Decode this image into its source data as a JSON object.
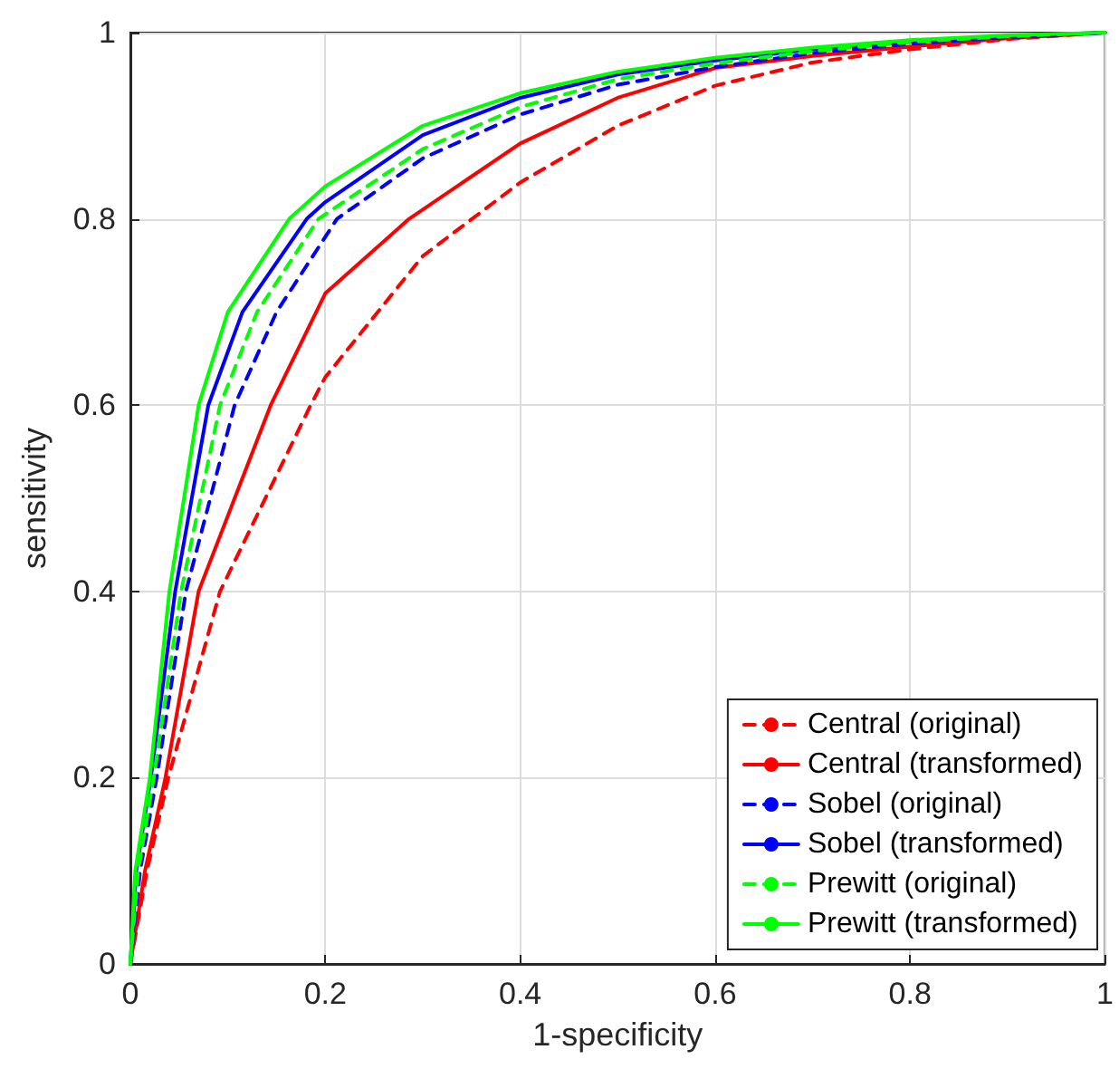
{
  "chart_data": {
    "type": "line",
    "xlabel": "1-specificity",
    "ylabel": "sensitivity",
    "xlim": [
      0,
      1
    ],
    "ylim": [
      0,
      1
    ],
    "xticks": [
      0,
      0.2,
      0.4,
      0.6,
      0.8,
      1
    ],
    "yticks": [
      0,
      0.2,
      0.4,
      0.6,
      0.8,
      1
    ],
    "grid": true,
    "legend": "bottom right",
    "marker": "none",
    "series": [
      {
        "name": "Central (original)",
        "color": "#ff0000",
        "line_style": "dashed",
        "x": [
          0,
          0.017,
          0.039,
          0.092,
          0.185,
          0.2,
          0.3,
          0.4,
          0.5,
          0.6,
          0.7,
          0.8,
          0.9,
          1
        ],
        "values": [
          0,
          0.1,
          0.2,
          0.4,
          0.6,
          0.63,
          0.76,
          0.839,
          0.9,
          0.943,
          0.968,
          0.982,
          0.993,
          1
        ]
      },
      {
        "name": "Central (transformed)",
        "color": "#ff0000",
        "line_style": "solid",
        "x": [
          0,
          0.015,
          0.036,
          0.07,
          0.144,
          0.2,
          0.286,
          0.4,
          0.5,
          0.6,
          0.7,
          0.8,
          0.9,
          1
        ],
        "values": [
          0,
          0.1,
          0.2,
          0.4,
          0.6,
          0.72,
          0.8,
          0.881,
          0.93,
          0.962,
          0.975,
          0.985,
          0.994,
          1
        ]
      },
      {
        "name": "Sobel (original)",
        "color": "#0000ff",
        "line_style": "dashed",
        "x": [
          0,
          0.01,
          0.027,
          0.057,
          0.107,
          0.15,
          0.212,
          0.3,
          0.4,
          0.5,
          0.6,
          0.7,
          0.8,
          0.9,
          1
        ],
        "values": [
          0,
          0.1,
          0.2,
          0.4,
          0.6,
          0.7,
          0.8,
          0.865,
          0.912,
          0.944,
          0.963,
          0.978,
          0.988,
          0.995,
          1
        ]
      },
      {
        "name": "Sobel (transformed)",
        "color": "#0000ff",
        "line_style": "solid",
        "x": [
          0,
          0.006,
          0.021,
          0.046,
          0.08,
          0.115,
          0.181,
          0.2,
          0.3,
          0.4,
          0.5,
          0.6,
          0.7,
          0.8,
          0.9,
          1
        ],
        "values": [
          0,
          0.1,
          0.2,
          0.4,
          0.6,
          0.7,
          0.8,
          0.818,
          0.89,
          0.93,
          0.955,
          0.97,
          0.982,
          0.99,
          0.996,
          1
        ]
      },
      {
        "name": "Prewitt (original)",
        "color": "#00ff00",
        "line_style": "dashed",
        "x": [
          0,
          0.008,
          0.024,
          0.052,
          0.092,
          0.13,
          0.193,
          0.3,
          0.4,
          0.5,
          0.6,
          0.7,
          0.8,
          0.9,
          1
        ],
        "values": [
          0,
          0.1,
          0.2,
          0.4,
          0.6,
          0.7,
          0.8,
          0.875,
          0.92,
          0.95,
          0.967,
          0.98,
          0.99,
          0.996,
          1
        ]
      },
      {
        "name": "Prewitt (transformed)",
        "color": "#00ff00",
        "line_style": "solid",
        "x": [
          0,
          0.005,
          0.02,
          0.04,
          0.07,
          0.1,
          0.163,
          0.2,
          0.3,
          0.4,
          0.5,
          0.6,
          0.7,
          0.8,
          0.9,
          1
        ],
        "values": [
          0,
          0.1,
          0.2,
          0.4,
          0.6,
          0.7,
          0.8,
          0.835,
          0.9,
          0.935,
          0.958,
          0.973,
          0.984,
          0.992,
          0.997,
          1
        ]
      }
    ]
  }
}
